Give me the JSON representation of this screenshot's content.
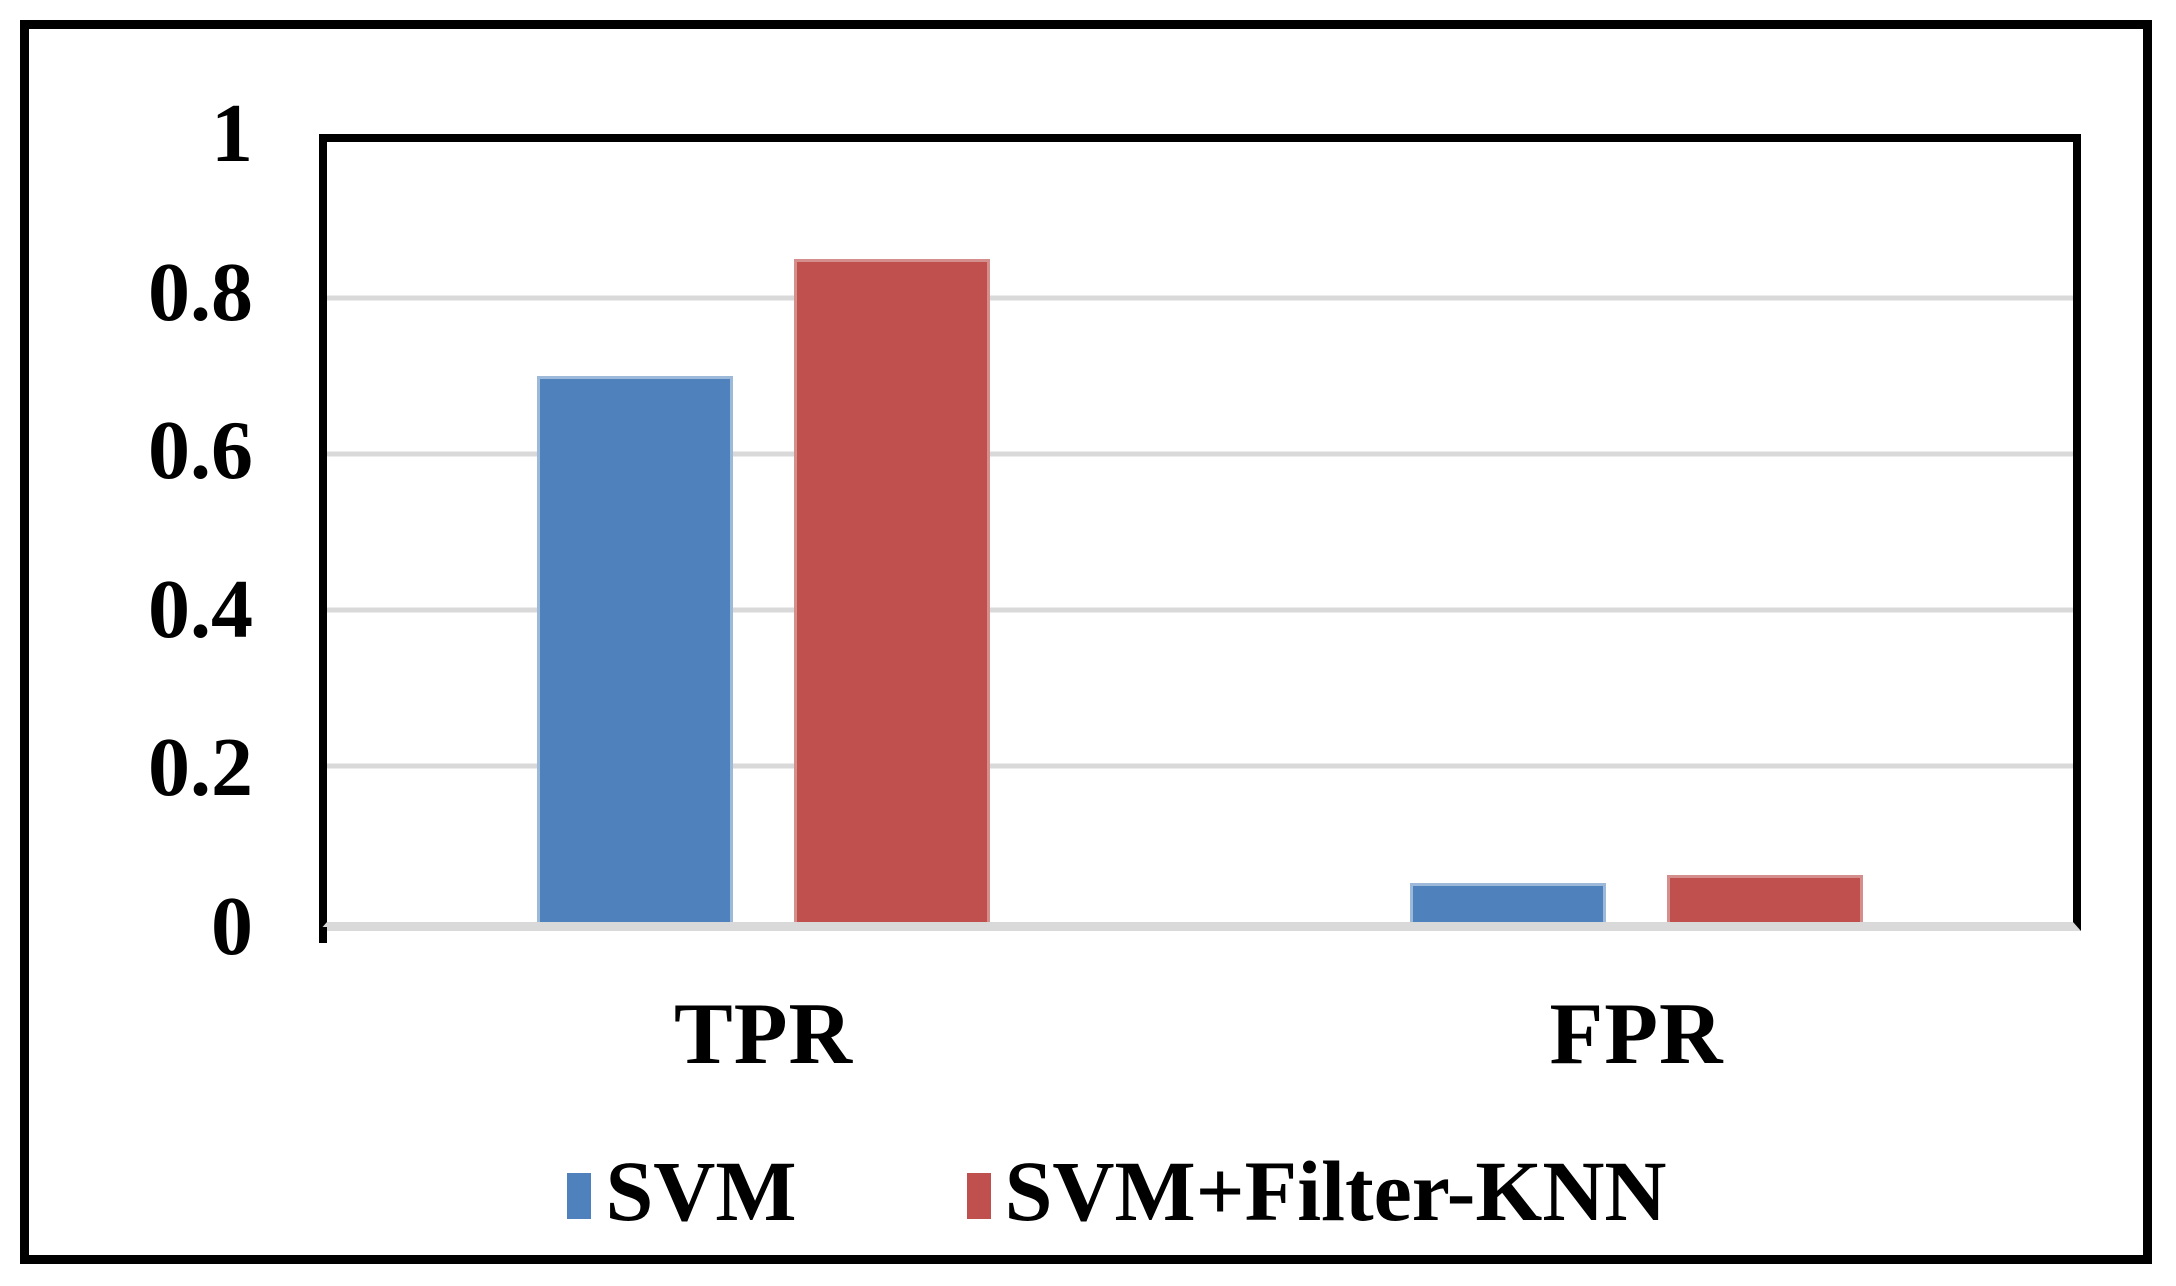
{
  "chart_data": {
    "type": "bar",
    "categories": [
      "TPR",
      "FPR"
    ],
    "series": [
      {
        "name": "SVM",
        "color": "#4F81BD",
        "edge_color": "#9CB9DA",
        "values": [
          0.7,
          0.05
        ]
      },
      {
        "name": "SVM+Filter-KNN",
        "color": "#C0504D",
        "edge_color": "#D48F8C",
        "values": [
          0.85,
          0.06
        ]
      }
    ],
    "ylim": [
      0,
      1
    ],
    "yticks": [
      1,
      0.8,
      0.6,
      0.4,
      0.2,
      0
    ],
    "ytick_labels": [
      "1",
      "0.8",
      "0.6",
      "0.4",
      "0.2",
      "0"
    ],
    "grid": "horizontal",
    "gridline_color": "#D9D9D9",
    "axis_color": "#000000",
    "frame_color": "#000000",
    "legend_position": "bottom"
  }
}
